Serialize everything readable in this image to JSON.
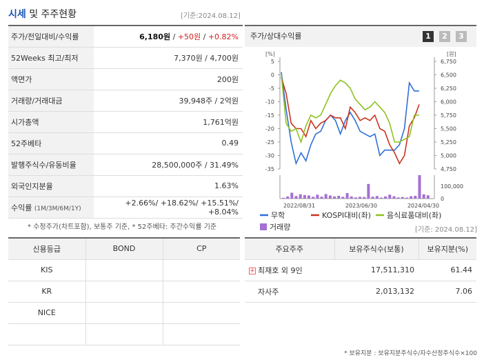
{
  "header": {
    "title_main": "시세",
    "title_rest": " 및 주주현황",
    "base_date": "[기준:2024.08.12]"
  },
  "stock_rows": [
    {
      "label": "주가/전일대비/수익률",
      "price": "6,180원",
      "sep1": " / ",
      "change": "+50원",
      "sep2": " / ",
      "rate": "+0.82%"
    },
    {
      "label": "52Weeks 최고/최저",
      "value": "7,370원 / 4,700원"
    },
    {
      "label": "액면가",
      "value": "200원"
    },
    {
      "label": "거래량/거래대금",
      "value": "39,948주 / 2억원"
    },
    {
      "label": "시가총액",
      "value": "1,761억원"
    },
    {
      "label": "52주베타",
      "value": "0.49"
    },
    {
      "label": "발행주식수/유동비율",
      "value": "28,500,000주 / 31.49%"
    },
    {
      "label": "외국인지분율",
      "value": "1.63%"
    },
    {
      "label": "수익률",
      "label_small": "(1M/3M/6M/1Y)",
      "value": "+2.66%/ +18.62%/ +15.51%/ +8.04%"
    }
  ],
  "footnote1": "* 수정주가(차트포함), 보통주 기준, * 52주베타: 주간수익률 기준",
  "chart_panel": {
    "title": "주가/상대수익률",
    "pages": [
      "1",
      "2",
      "3"
    ],
    "left_unit": "[%]",
    "right_unit": "[원]",
    "vol_tick_top": "100,000",
    "vol_tick_zero": "0"
  },
  "chart_data": {
    "type": "line",
    "x_labels": [
      "2022/08/31",
      "2023/06/30",
      "2024/04/30"
    ],
    "y_left_ticks": [
      "5",
      "0",
      "-5",
      "-10",
      "-15",
      "-20",
      "-25",
      "-30",
      "-35"
    ],
    "y_right_ticks": [
      "6,750",
      "6,500",
      "6,250",
      "6,000",
      "5,750",
      "5,500",
      "5,250",
      "5,000",
      "4,750"
    ],
    "ylim_left": [
      -35,
      5
    ],
    "series": [
      {
        "name": "무학",
        "color": "#2e6fd6",
        "values": [
          1,
          -13,
          -25,
          -33,
          -29,
          -32,
          -26,
          -22,
          -21,
          -17,
          -15,
          -17,
          -22,
          -17,
          -14,
          -17,
          -21,
          -22,
          -23,
          -22,
          -30,
          -28,
          -28,
          -28,
          -26,
          -20,
          -3,
          -6,
          -6
        ]
      },
      {
        "name": "KOSPI대비(좌)",
        "color": "#c8321e",
        "values": [
          -1,
          -7,
          -18,
          -20,
          -20,
          -23,
          -17,
          -20,
          -18,
          -17,
          -15,
          -16,
          -16,
          -20,
          -12,
          -14,
          -17,
          -16,
          -17,
          -15,
          -20,
          -21,
          -26,
          -29,
          -33,
          -30,
          -19,
          -16,
          -11
        ]
      },
      {
        "name": "음식료품대비(좌)",
        "color": "#8dc21f",
        "values": [
          0,
          -18,
          -21,
          -20,
          -25,
          -19,
          -15,
          -16,
          -15,
          -11,
          -7,
          -4,
          -2,
          -3,
          -5,
          -9,
          -11,
          -13,
          -12,
          -10,
          -12,
          -14,
          -18,
          -25,
          -25,
          -24,
          -23,
          -15,
          -15
        ]
      }
    ],
    "volume": {
      "name": "거래량",
      "color": "#a56fd3",
      "values": [
        4000,
        11000,
        30000,
        13000,
        22000,
        18000,
        16000,
        9000,
        20000,
        10000,
        23000,
        16000,
        11000,
        14000,
        9000,
        28000,
        11000,
        6000,
        9000,
        8000,
        75000,
        10000,
        13000,
        5000,
        11000,
        20000,
        12000,
        6000,
        8000,
        5000,
        12000,
        14000,
        120000,
        22000,
        17000
      ]
    },
    "volume_ylim": [
      0,
      120000
    ]
  },
  "base_date2": "[기준: 2024.08.12]",
  "credit_table": {
    "headers": [
      "신용등급",
      "BOND",
      "CP"
    ],
    "rows": [
      [
        "KIS",
        "",
        ""
      ],
      [
        "KR",
        "",
        ""
      ],
      [
        "NICE",
        "",
        ""
      ],
      [
        "",
        "",
        ""
      ]
    ]
  },
  "holder_table": {
    "headers": [
      "주요주주",
      "보유주식수(보통)",
      "보유지분(%)"
    ],
    "rows": [
      {
        "name": "최재호 외 9인",
        "shares": "17,511,310",
        "pct": "61.44",
        "expand_icon": "+"
      },
      {
        "name": "자사주",
        "shares": "2,013,132",
        "pct": "7.06"
      }
    ]
  },
  "footnote2": "* 보유지분 : 보유지분주식수/자수산정주식수×100"
}
